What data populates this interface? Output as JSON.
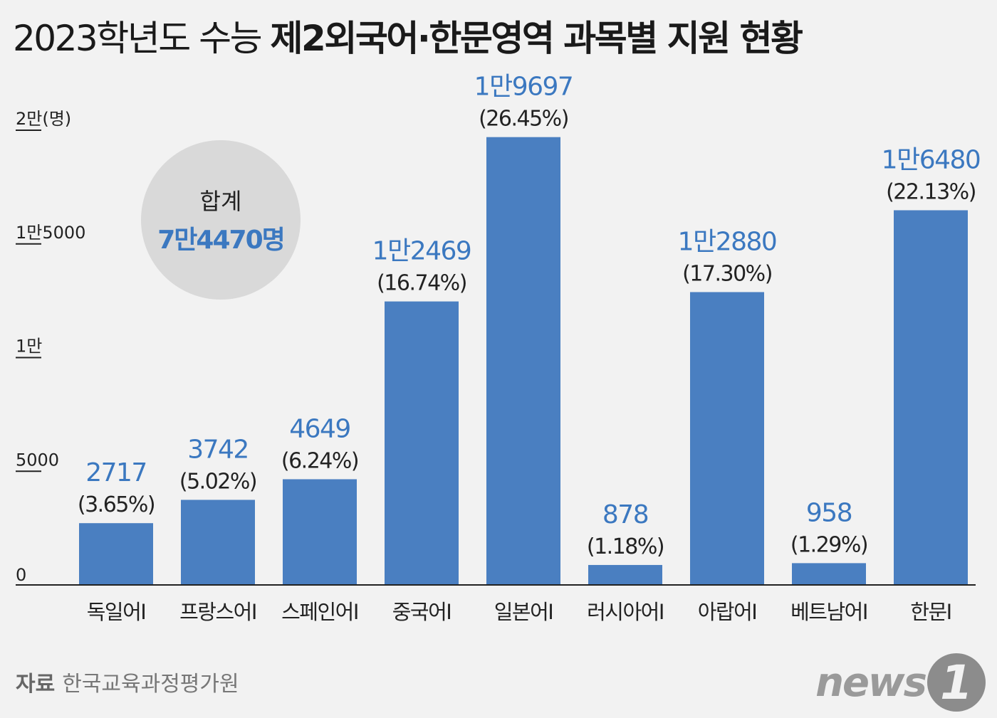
{
  "title": {
    "part1": "2023학년도 수능 ",
    "part2": "제2외국어·한문영역 과목별 지원 현황"
  },
  "total": {
    "label": "합계",
    "value": "7만4470명"
  },
  "source": {
    "key": "자료",
    "value": "한국교육과정평가원"
  },
  "brand": {
    "text": "news",
    "mark": "1"
  },
  "colors": {
    "bar": "#4a7fc1",
    "value_label": "#3b78c0",
    "background": "#f2f2f2",
    "badge": "#d9d9d9"
  },
  "chart_data": {
    "type": "bar",
    "ylim": [
      0,
      20000
    ],
    "yticks": [
      {
        "value": 0,
        "label": "0"
      },
      {
        "value": 5000,
        "label": "5000"
      },
      {
        "value": 10000,
        "label": "1만"
      },
      {
        "value": 15000,
        "label": "1만5000"
      },
      {
        "value": 20000,
        "label": "2만(명)"
      }
    ],
    "categories": [
      "독일어Ⅰ",
      "프랑스어Ⅰ",
      "스페인어Ⅰ",
      "중국어Ⅰ",
      "일본어Ⅰ",
      "러시아어Ⅰ",
      "아랍어Ⅰ",
      "베트남어Ⅰ",
      "한문Ⅰ"
    ],
    "values": [
      2717,
      3742,
      4649,
      12469,
      19697,
      878,
      12880,
      958,
      16480
    ],
    "value_labels": [
      "2717",
      "3742",
      "4649",
      "1만2469",
      "1만9697",
      "878",
      "1만2880",
      "958",
      "1만6480"
    ],
    "percent_labels": [
      "(3.65%)",
      "(5.02%)",
      "(6.24%)",
      "(16.74%)",
      "(26.45%)",
      "(1.18%)",
      "(17.30%)",
      "(1.29%)",
      "(22.13%)"
    ],
    "grid": false,
    "legend": "none"
  }
}
